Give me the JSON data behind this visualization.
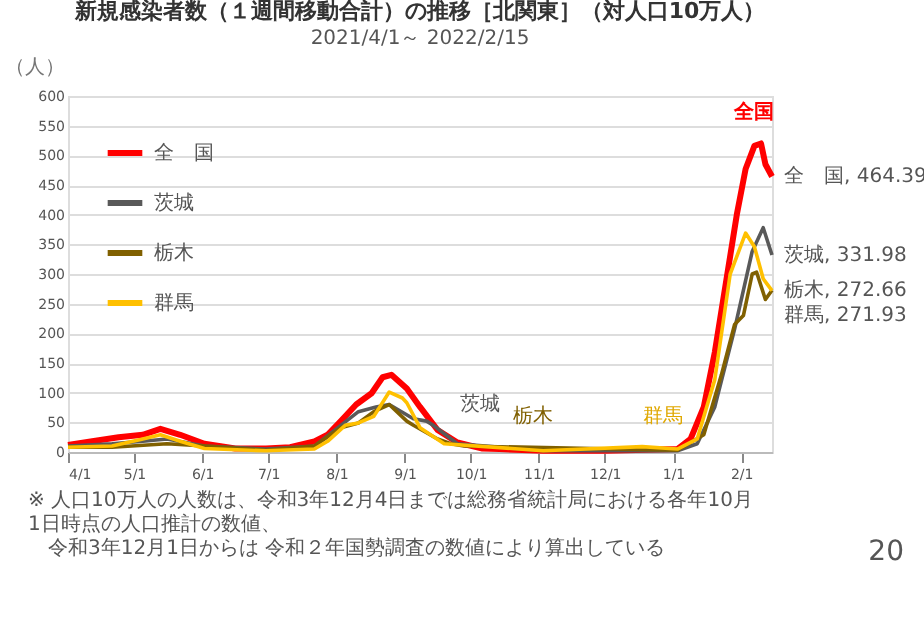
{
  "chart_data": {
    "type": "line",
    "title": "新規感染者数（１週間移動合計）の推移［北関東］（対人口10万人）",
    "subtitle": "2021/4/1～ 2022/2/15",
    "ylabel": "（人）",
    "xlim": [
      "2021-04-01",
      "2022-02-15"
    ],
    "xticks": [
      {
        "value": "2021-04-01",
        "label": "4/1"
      },
      {
        "value": "2021-05-01",
        "label": "5/1"
      },
      {
        "value": "2021-06-01",
        "label": "6/1"
      },
      {
        "value": "2021-07-01",
        "label": "7/1"
      },
      {
        "value": "2021-08-01",
        "label": "8/1"
      },
      {
        "value": "2021-09-01",
        "label": "9/1"
      },
      {
        "value": "2021-10-01",
        "label": "10/1"
      },
      {
        "value": "2021-11-01",
        "label": "11/1"
      },
      {
        "value": "2021-12-01",
        "label": "12/1"
      },
      {
        "value": "2022-01-01",
        "label": "1/1"
      },
      {
        "value": "2022-02-01",
        "label": "2/1"
      }
    ],
    "ylim": [
      0,
      600
    ],
    "yticks": [
      0,
      50,
      100,
      150,
      200,
      250,
      300,
      350,
      400,
      450,
      500,
      550,
      600
    ],
    "grid": "y",
    "legend": "top left",
    "series": [
      {
        "name": "全　国",
        "color": "#ff0000",
        "x": [
          "2021-04-01",
          "2021-04-12",
          "2021-04-24",
          "2021-05-05",
          "2021-05-13",
          "2021-05-22",
          "2021-06-02",
          "2021-06-16",
          "2021-06-30",
          "2021-07-11",
          "2021-07-22",
          "2021-07-28",
          "2021-08-03",
          "2021-08-10",
          "2021-08-17",
          "2021-08-22",
          "2021-08-26",
          "2021-09-02",
          "2021-09-08",
          "2021-09-16",
          "2021-09-25",
          "2021-10-06",
          "2021-10-14",
          "2021-11-03",
          "2021-12-01",
          "2022-01-03",
          "2022-01-09",
          "2022-01-15",
          "2022-01-20",
          "2022-01-26",
          "2022-01-30",
          "2022-02-03",
          "2022-02-07",
          "2022-02-10",
          "2022-02-12",
          "2022-02-15"
        ],
        "values": [
          12,
          18,
          25,
          29,
          39,
          29,
          14,
          6,
          6,
          8,
          18,
          29,
          52,
          80,
          99,
          126,
          130,
          107,
          76,
          37,
          16,
          6,
          5,
          2,
          2,
          5,
          22,
          76,
          168,
          307,
          400,
          477,
          516,
          520,
          485,
          464.39
        ]
      },
      {
        "name": "茨城",
        "color": "#595959",
        "x": [
          "2021-04-01",
          "2021-04-21",
          "2021-05-05",
          "2021-05-16",
          "2021-06-02",
          "2021-06-30",
          "2021-07-22",
          "2021-08-03",
          "2021-08-11",
          "2021-08-19",
          "2021-08-25",
          "2021-09-05",
          "2021-09-11",
          "2021-09-14",
          "2021-09-25",
          "2021-11-03",
          "2022-01-03",
          "2022-01-12",
          "2022-01-20",
          "2022-01-29",
          "2022-02-06",
          "2022-02-11",
          "2022-02-15"
        ],
        "values": [
          10,
          14,
          18,
          22,
          10,
          5,
          10,
          45,
          68,
          76,
          80,
          56,
          52,
          45,
          14,
          2,
          2,
          14,
          76,
          207,
          338,
          378,
          331.98
        ]
      },
      {
        "name": "栃木",
        "color": "#806000",
        "x": [
          "2021-04-01",
          "2021-04-21",
          "2021-05-16",
          "2021-06-02",
          "2021-06-30",
          "2021-07-22",
          "2021-08-03",
          "2021-08-11",
          "2021-08-18",
          "2021-08-25",
          "2021-09-02",
          "2021-09-05",
          "2021-09-16",
          "2021-09-22",
          "2021-09-28",
          "2022-01-03",
          "2022-01-15",
          "2022-01-23",
          "2022-01-29",
          "2022-02-02",
          "2022-02-06",
          "2022-02-08",
          "2022-02-12",
          "2022-02-15"
        ],
        "values": [
          8,
          8,
          14,
          10,
          3,
          10,
          41,
          49,
          68,
          80,
          52,
          45,
          22,
          14,
          10,
          3,
          29,
          130,
          215,
          230,
          300,
          303,
          257,
          272.66
        ]
      },
      {
        "name": "群馬",
        "color": "#ffc000",
        "x": [
          "2021-04-01",
          "2021-04-21",
          "2021-05-05",
          "2021-05-13",
          "2021-05-22",
          "2021-06-02",
          "2021-06-30",
          "2021-07-22",
          "2021-07-28",
          "2021-08-05",
          "2021-08-11",
          "2021-08-18",
          "2021-08-25",
          "2021-08-31",
          "2021-09-02",
          "2021-09-08",
          "2021-09-19",
          "2021-11-03",
          "2021-12-18",
          "2022-01-03",
          "2022-01-12",
          "2022-01-20",
          "2022-01-27",
          "2022-02-03",
          "2022-02-07",
          "2022-02-11",
          "2022-02-15"
        ],
        "values": [
          8,
          10,
          22,
          29,
          18,
          6,
          2,
          5,
          18,
          45,
          49,
          60,
          101,
          91,
          83,
          41,
          14,
          2,
          9,
          5,
          22,
          122,
          300,
          369,
          346,
          292,
          271.93
        ]
      }
    ],
    "annotations": [
      "全国",
      "茨城",
      "栃木",
      "群馬",
      {
        "text": "全　国, 464.39",
        "x": "2022-02-15",
        "y": 464.39
      },
      {
        "text": "茨城, 331.98",
        "x": "2022-02-15",
        "y": 331.98
      },
      {
        "text": "栃木, 272.66",
        "x": "2022-02-15",
        "y": 272.66
      },
      {
        "text": "群馬, 271.93",
        "x": "2022-02-15",
        "y": 271.93
      },
      "※ 人口10万人の人数は、令和3年12月4日までは総務省統計局における各年10月1日時点の人口推計の数値、",
      "令和3年12月1日からは 令和２年国勢調査の数値により算出している",
      "20"
    ]
  }
}
